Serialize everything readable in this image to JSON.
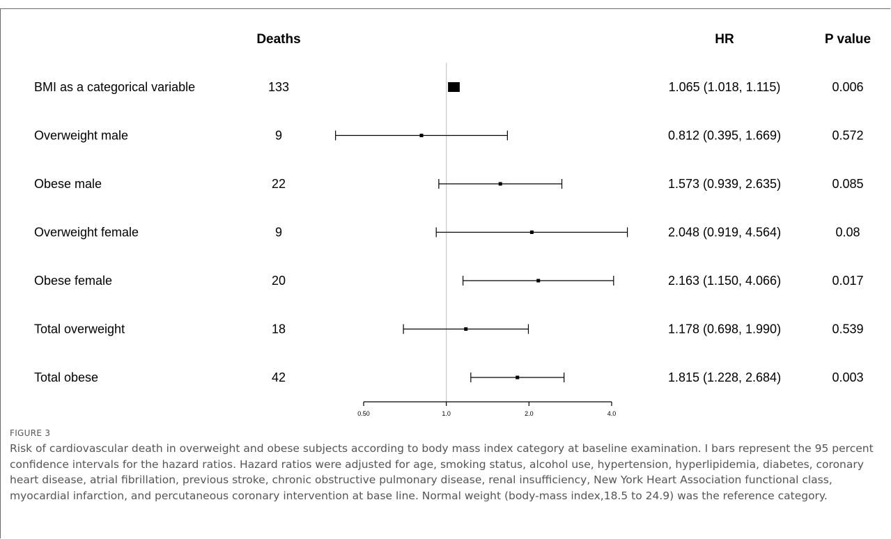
{
  "figure": {
    "label": "FIGURE 3",
    "caption": "Risk of cardiovascular death in overweight and obese subjects according to body mass index category at baseline examination. I bars represent the 95 percent confidence intervals for the hazard ratios. Hazard ratios were adjusted for age, smoking status, alcohol use, hypertension, hyperlipidemia, diabetes, coronary heart disease, atrial fibrillation, previous stroke, chronic obstructive pulmonary disease, renal insufficiency, New York Heart Association functional class, myocardial infarction, and percutaneous coronary intervention at base line. Normal weight (body-mass index,18.5 to 24.9) was the reference category."
  },
  "headers": {
    "deaths": "Deaths",
    "hr": "HR",
    "p": "P value"
  },
  "chart_data": {
    "type": "forest",
    "x_scale": "log",
    "xlim": [
      0.5,
      4.0
    ],
    "x_ticks": [
      0.5,
      1.0,
      2.0,
      4.0
    ],
    "x_tick_labels": [
      "0.50",
      "1.0",
      "2.0",
      "4.0"
    ],
    "reference_line": 1.0,
    "rows": [
      {
        "label": "BMI as a categorical variable",
        "deaths": "133",
        "hr": 1.065,
        "lo": 1.018,
        "hi": 1.115,
        "hr_text": "1.065 (1.018, 1.115)",
        "p": "0.006",
        "marker": "square"
      },
      {
        "label": "Overweight male",
        "deaths": "9",
        "hr": 0.812,
        "lo": 0.395,
        "hi": 1.669,
        "hr_text": "0.812 (0.395, 1.669)",
        "p": "0.572",
        "marker": "dot"
      },
      {
        "label": "Obese male",
        "deaths": "22",
        "hr": 1.573,
        "lo": 0.939,
        "hi": 2.635,
        "hr_text": "1.573 (0.939, 2.635)",
        "p": "0.085",
        "marker": "dot"
      },
      {
        "label": "Overweight female",
        "deaths": "9",
        "hr": 2.048,
        "lo": 0.919,
        "hi": 4.564,
        "hr_text": "2.048 (0.919, 4.564)",
        "p": "0.08",
        "marker": "dot"
      },
      {
        "label": "Obese female",
        "deaths": "20",
        "hr": 2.163,
        "lo": 1.15,
        "hi": 4.066,
        "hr_text": "2.163 (1.150, 4.066)",
        "p": "0.017",
        "marker": "dot"
      },
      {
        "label": "Total overweight",
        "deaths": "18",
        "hr": 1.178,
        "lo": 0.698,
        "hi": 1.99,
        "hr_text": "1.178 (0.698, 1.990)",
        "p": "0.539",
        "marker": "dot"
      },
      {
        "label": "Total obese",
        "deaths": "42",
        "hr": 1.815,
        "lo": 1.228,
        "hi": 2.684,
        "hr_text": "1.815 (1.228, 2.684)",
        "p": "0.003",
        "marker": "dot"
      }
    ]
  }
}
